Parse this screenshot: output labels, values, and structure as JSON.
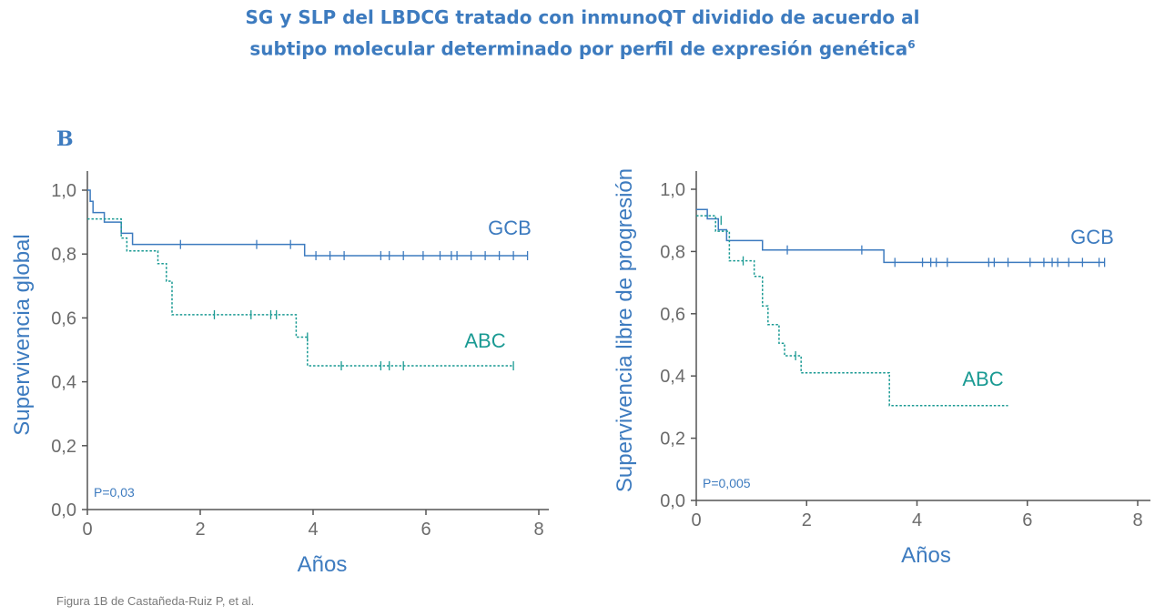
{
  "header": {
    "title_line1": "SG y SLP del LBDCG tratado con inmunoQT dividido de acuerdo al",
    "title_line2": "subtipo molecular determinado por perfil de expresión genética",
    "title_sup": "6"
  },
  "panel_letter": "B",
  "caption": "Figura 1B de Castañeda-Ruiz P, et al.",
  "colors": {
    "gcb": "#3d7bbf",
    "abc": "#1a9a93",
    "axis": "#555555",
    "title": "#3d7bbf"
  },
  "chart_data": [
    {
      "type": "line",
      "style": "kaplan-meier step",
      "xlabel": "Años",
      "ylabel": "Supervivencia global",
      "xticks": [
        "0",
        "2",
        "4",
        "6",
        "8"
      ],
      "yticks": [
        "0,0",
        "0,2",
        "0,4",
        "0,6",
        "0,8",
        "1,0"
      ],
      "xlim": [
        0,
        8
      ],
      "ylim": [
        0,
        1
      ],
      "annotation": "P=0,03",
      "series": [
        {
          "name": "GCB",
          "line": "solid",
          "steps": [
            [
              0,
              1.0
            ],
            [
              0.05,
              0.965
            ],
            [
              0.1,
              0.93
            ],
            [
              0.3,
              0.9
            ],
            [
              0.6,
              0.865
            ],
            [
              0.8,
              0.83
            ],
            [
              3.85,
              0.795
            ],
            [
              7.8,
              0.795
            ]
          ],
          "censored": [
            [
              1.65,
              0.83
            ],
            [
              3.0,
              0.83
            ],
            [
              3.6,
              0.83
            ],
            [
              4.05,
              0.795
            ],
            [
              4.3,
              0.795
            ],
            [
              4.55,
              0.795
            ],
            [
              5.2,
              0.795
            ],
            [
              5.35,
              0.795
            ],
            [
              5.6,
              0.795
            ],
            [
              5.95,
              0.795
            ],
            [
              6.25,
              0.795
            ],
            [
              6.45,
              0.795
            ],
            [
              6.55,
              0.795
            ],
            [
              6.8,
              0.795
            ],
            [
              7.05,
              0.795
            ],
            [
              7.3,
              0.795
            ],
            [
              7.55,
              0.795
            ],
            [
              7.8,
              0.795
            ]
          ]
        },
        {
          "name": "ABC",
          "line": "dotted",
          "steps": [
            [
              0,
              0.91
            ],
            [
              0.6,
              0.85
            ],
            [
              0.7,
              0.81
            ],
            [
              1.25,
              0.77
            ],
            [
              1.4,
              0.715
            ],
            [
              1.5,
              0.61
            ],
            [
              3.7,
              0.54
            ],
            [
              3.9,
              0.45
            ],
            [
              7.55,
              0.45
            ]
          ],
          "censored": [
            [
              2.25,
              0.61
            ],
            [
              2.9,
              0.61
            ],
            [
              3.25,
              0.61
            ],
            [
              3.35,
              0.61
            ],
            [
              3.9,
              0.54
            ],
            [
              4.5,
              0.45
            ],
            [
              5.2,
              0.45
            ],
            [
              5.35,
              0.45
            ],
            [
              5.6,
              0.45
            ],
            [
              7.55,
              0.45
            ]
          ]
        }
      ]
    },
    {
      "type": "line",
      "style": "kaplan-meier step",
      "xlabel": "Años",
      "ylabel": "Supervivencia libre de progresión",
      "xticks": [
        "0",
        "2",
        "4",
        "6",
        "8"
      ],
      "yticks": [
        "0,0",
        "0,2",
        "0,4",
        "0,6",
        "0,8",
        "1,0"
      ],
      "xlim": [
        0,
        8
      ],
      "ylim": [
        0,
        1
      ],
      "annotation": "P=0,005",
      "series": [
        {
          "name": "GCB",
          "line": "solid",
          "steps": [
            [
              0,
              0.935
            ],
            [
              0.2,
              0.905
            ],
            [
              0.4,
              0.87
            ],
            [
              0.55,
              0.835
            ],
            [
              1.2,
              0.805
            ],
            [
              3.4,
              0.765
            ],
            [
              7.4,
              0.765
            ]
          ],
          "censored": [
            [
              1.65,
              0.805
            ],
            [
              3.0,
              0.805
            ],
            [
              3.6,
              0.765
            ],
            [
              4.1,
              0.765
            ],
            [
              4.25,
              0.765
            ],
            [
              4.35,
              0.765
            ],
            [
              4.55,
              0.765
            ],
            [
              5.3,
              0.765
            ],
            [
              5.4,
              0.765
            ],
            [
              5.65,
              0.765
            ],
            [
              6.05,
              0.765
            ],
            [
              6.3,
              0.765
            ],
            [
              6.45,
              0.765
            ],
            [
              6.55,
              0.765
            ],
            [
              6.75,
              0.765
            ],
            [
              7.0,
              0.765
            ],
            [
              7.3,
              0.765
            ],
            [
              7.4,
              0.765
            ]
          ]
        },
        {
          "name": "ABC",
          "line": "dotted",
          "steps": [
            [
              0,
              0.915
            ],
            [
              0.35,
              0.865
            ],
            [
              0.6,
              0.77
            ],
            [
              1.05,
              0.72
            ],
            [
              1.2,
              0.625
            ],
            [
              1.3,
              0.565
            ],
            [
              1.5,
              0.505
            ],
            [
              1.6,
              0.465
            ],
            [
              1.9,
              0.41
            ],
            [
              3.5,
              0.305
            ],
            [
              5.65,
              0.305
            ]
          ],
          "censored": [
            [
              0.45,
              0.9
            ],
            [
              0.85,
              0.77
            ],
            [
              1.8,
              0.465
            ]
          ]
        }
      ]
    }
  ]
}
